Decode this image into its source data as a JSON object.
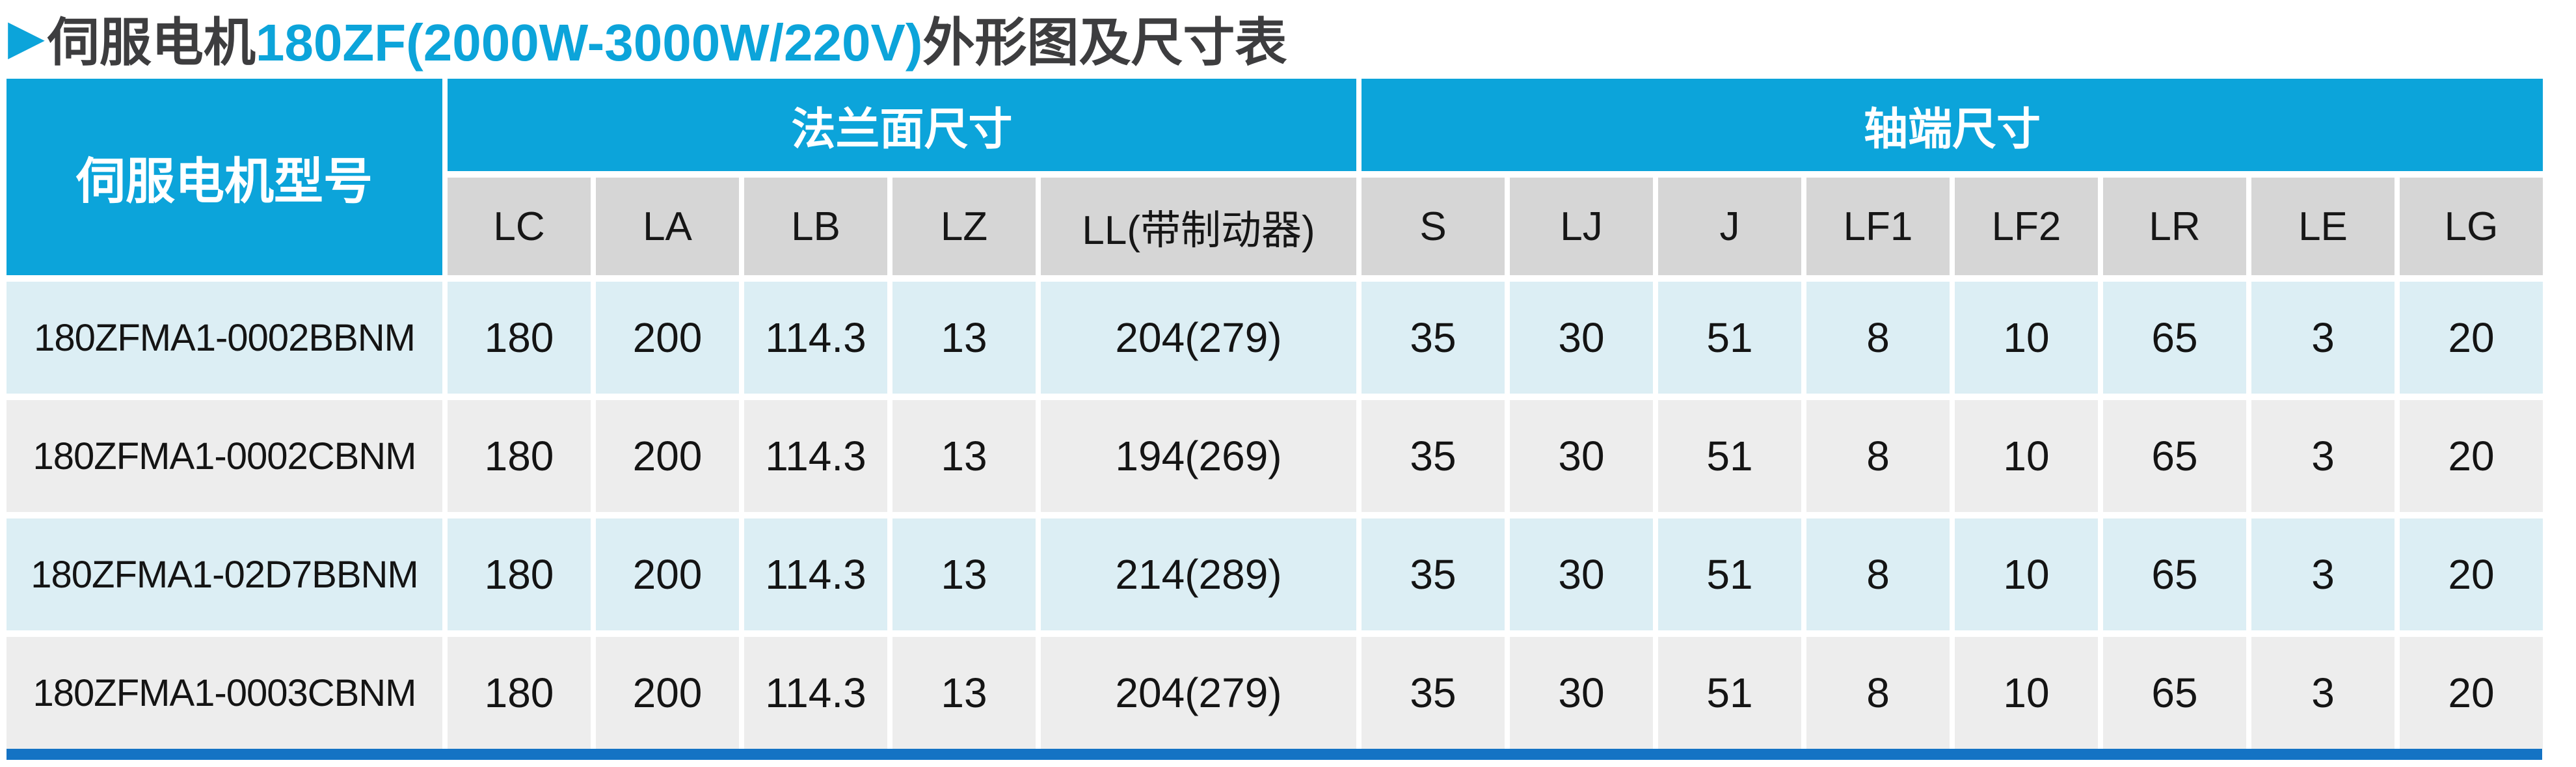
{
  "title": {
    "bullet": "▶",
    "prefix": "伺服电机",
    "highlight": "180ZF(2000W-3000W/220V)",
    "suffix": "外形图及尺寸表"
  },
  "table": {
    "model_header": "伺服电机型号",
    "groups": [
      {
        "label": "法兰面尺寸",
        "span": 5
      },
      {
        "label": "轴端尺寸",
        "span": 8
      }
    ],
    "columns": [
      "LC",
      "LA",
      "LB",
      "LZ",
      "LL(带制动器)",
      "S",
      "LJ",
      "J",
      "LF1",
      "LF2",
      "LR",
      "LE",
      "LG"
    ],
    "rows": [
      {
        "model": "180ZFMA1-0002BBNM",
        "values": [
          "180",
          "200",
          "114.3",
          "13",
          "204(279)",
          "35",
          "30",
          "51",
          "8",
          "10",
          "65",
          "3",
          "20"
        ]
      },
      {
        "model": "180ZFMA1-0002CBNM",
        "values": [
          "180",
          "200",
          "114.3",
          "13",
          "194(269)",
          "35",
          "30",
          "51",
          "8",
          "10",
          "65",
          "3",
          "20"
        ]
      },
      {
        "model": "180ZFMA1-02D7BBNM",
        "values": [
          "180",
          "200",
          "114.3",
          "13",
          "214(289)",
          "35",
          "30",
          "51",
          "8",
          "10",
          "65",
          "3",
          "20"
        ]
      },
      {
        "model": "180ZFMA1-0003CBNM",
        "values": [
          "180",
          "200",
          "114.3",
          "13",
          "204(279)",
          "35",
          "30",
          "51",
          "8",
          "10",
          "65",
          "3",
          "20"
        ]
      }
    ]
  },
  "colors": {
    "header_blue": "#0ca4da",
    "accent_blue": "#0ca4da",
    "bar_blue": "#1473c4",
    "subheader_gray": "#d6d6d6",
    "row_blue": "#dceef4",
    "row_gray": "#ededed",
    "title_dark": "#3d3d3f"
  }
}
